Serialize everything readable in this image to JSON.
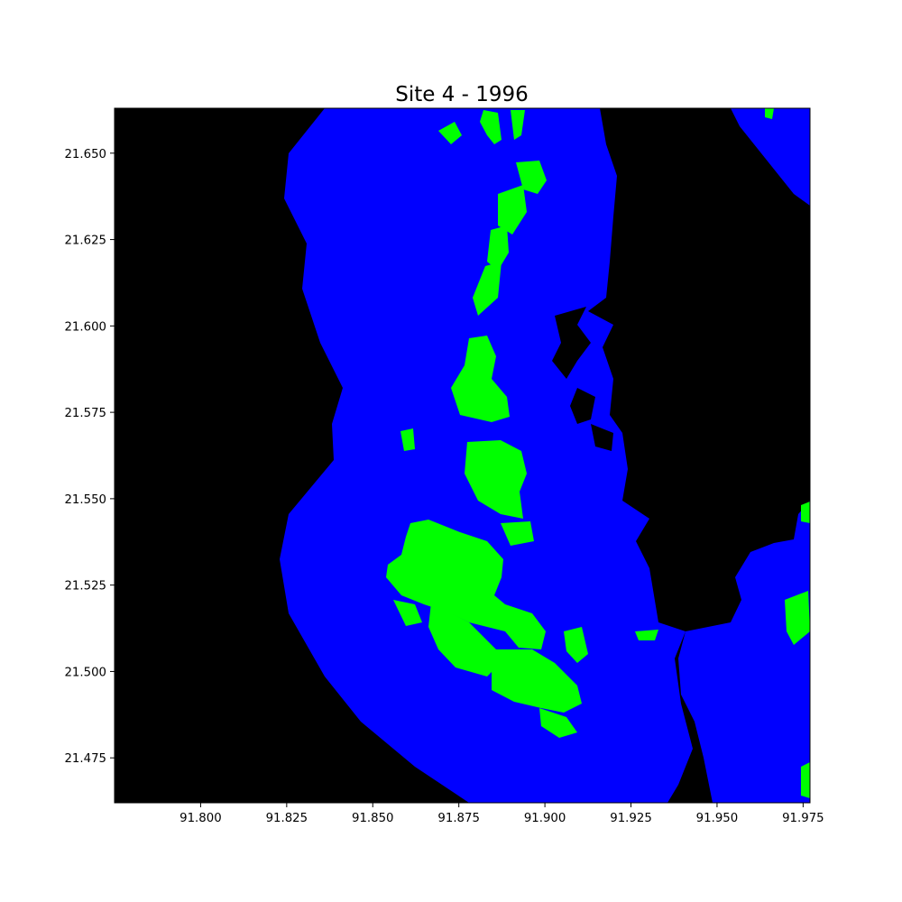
{
  "chart_data": {
    "type": "map",
    "title": "Site 4 - 1996",
    "xlim": [
      91.775,
      91.977
    ],
    "ylim": [
      21.462,
      21.663
    ],
    "x_ticks": [
      "91.800",
      "91.825",
      "91.850",
      "91.875",
      "91.900",
      "91.925",
      "91.950",
      "91.975"
    ],
    "y_ticks": [
      "21.650",
      "21.625",
      "21.600",
      "21.575",
      "21.550",
      "21.525",
      "21.500",
      "21.475"
    ],
    "legend": "none",
    "grid": false,
    "colors": {
      "background": "#000000",
      "water_buffer": "#0000ff",
      "vegetation": "#00ff00"
    }
  }
}
